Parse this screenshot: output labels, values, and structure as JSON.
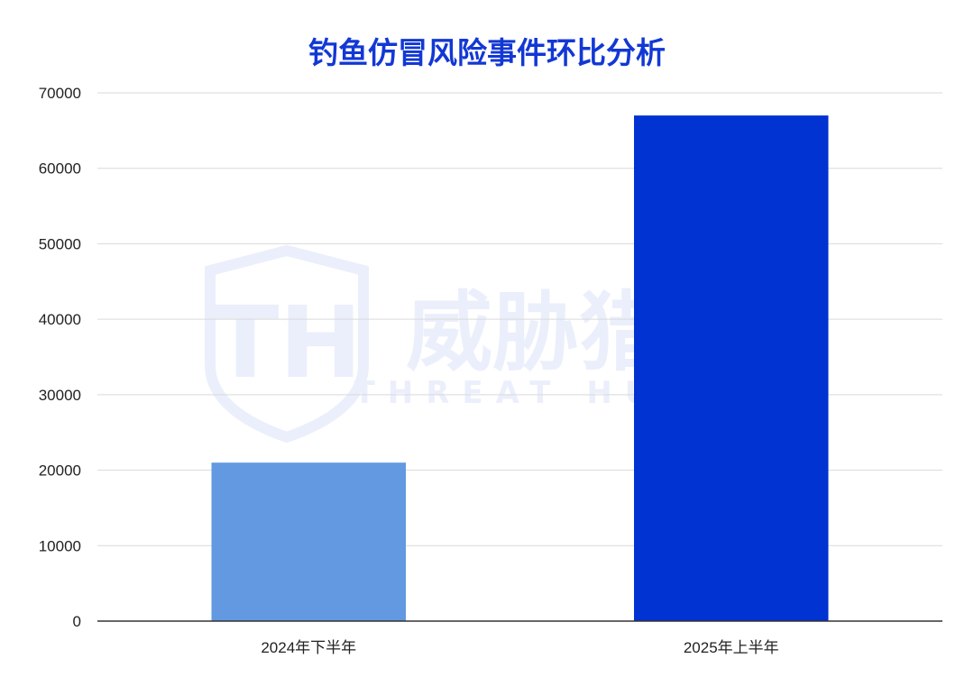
{
  "chart_data": {
    "type": "bar",
    "title": "钓鱼仿冒风险事件环比分析",
    "xlabel": "",
    "ylabel": "",
    "categories": [
      "2024年下半年",
      "2025年上半年"
    ],
    "values": [
      21000,
      67000
    ],
    "bar_colors": [
      "#6299e0",
      "#0033d1"
    ],
    "ylim": [
      0,
      70000
    ],
    "yticks": [
      0,
      10000,
      20000,
      30000,
      40000,
      50000,
      60000,
      70000
    ],
    "grid": true,
    "legend": "none"
  },
  "watermark": {
    "name": "威胁猎人",
    "subtitle": "THREAT HUNTER",
    "logo": "TH"
  },
  "colors": {
    "title": "#1238d4",
    "grid": "#d9d9d9",
    "axis": "#333333",
    "tick_text": "#222222"
  }
}
